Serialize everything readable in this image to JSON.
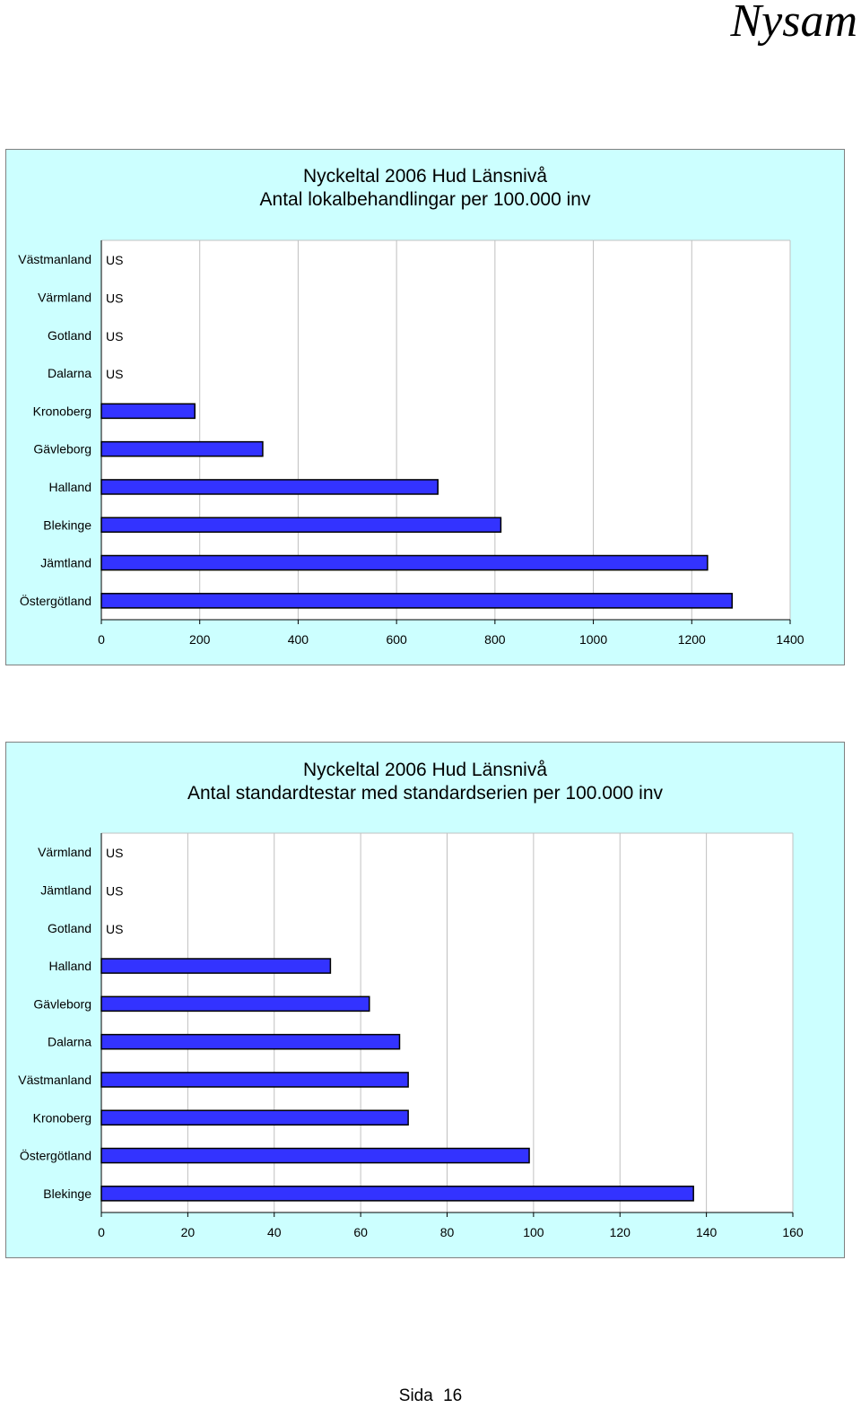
{
  "header": {
    "brand": "Nysam"
  },
  "footer": {
    "page_label": "Sida",
    "page_number": "16"
  },
  "colors": {
    "panel_bg": "#ccffff",
    "plot_bg": "#ffffff",
    "bar_fill": "#3333ff",
    "bar_stroke": "#000000",
    "gridline": "#c0c0c0"
  },
  "chart_data": [
    {
      "type": "bar",
      "orientation": "horizontal",
      "title": "Nyckeltal 2006  Hud  Länsnivå",
      "subtitle": "Antal lokalbehandlingar per 100.000 inv",
      "categories": [
        "Västmanland",
        "Värmland",
        "Gotland",
        "Dalarna",
        "Kronoberg",
        "Gävleborg",
        "Halland",
        "Blekinge",
        "Jämtland",
        "Östergötland"
      ],
      "values": [
        null,
        null,
        null,
        null,
        190,
        328,
        684,
        812,
        1232,
        1282
      ],
      "value_labels": [
        "US",
        "US",
        "US",
        "US",
        "",
        "",
        "",
        "",
        "",
        ""
      ],
      "xlim": [
        0,
        1400
      ],
      "xticks": [
        "0",
        "200",
        "400",
        "600",
        "800",
        "1000",
        "1200",
        "1400"
      ],
      "grid": true
    },
    {
      "type": "bar",
      "orientation": "horizontal",
      "title": "Nyckeltal 2006  Hud  Länsnivå",
      "subtitle": "Antal standardtestar med standardserien per 100.000 inv",
      "categories": [
        "Värmland",
        "Jämtland",
        "Gotland",
        "Halland",
        "Gävleborg",
        "Dalarna",
        "Västmanland",
        "Kronoberg",
        "Östergötland",
        "Blekinge"
      ],
      "values": [
        null,
        null,
        null,
        53,
        62,
        69,
        71,
        71,
        99,
        137
      ],
      "value_labels": [
        "US",
        "US",
        "US",
        "",
        "",
        "",
        "",
        "",
        "",
        ""
      ],
      "xlim": [
        0,
        160
      ],
      "xticks": [
        "0",
        "20",
        "40",
        "60",
        "80",
        "100",
        "120",
        "140",
        "160"
      ],
      "grid": true
    }
  ]
}
